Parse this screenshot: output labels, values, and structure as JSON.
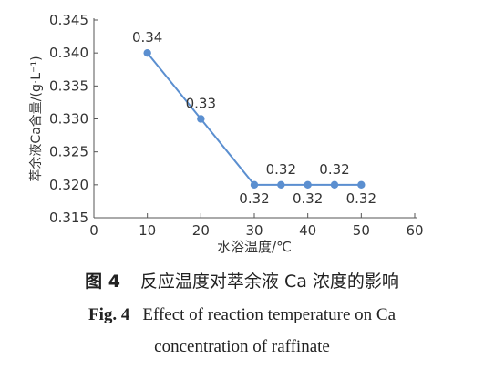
{
  "chart_data": {
    "type": "line",
    "x": [
      10,
      20,
      30,
      35,
      40,
      45,
      50
    ],
    "y": [
      0.34,
      0.33,
      0.32,
      0.32,
      0.32,
      0.32,
      0.32
    ],
    "point_labels": [
      "0.34",
      "0.33",
      "0.32",
      "0.32",
      "0.32",
      "0.32",
      "0.32"
    ],
    "label_positions": [
      "above",
      "above",
      "below",
      "above",
      "below",
      "above",
      "below"
    ],
    "xlim": [
      0,
      60
    ],
    "ylim": [
      0.315,
      0.345
    ],
    "xticks": [
      "0",
      "10",
      "20",
      "30",
      "40",
      "50",
      "60"
    ],
    "yticks": [
      "0.315",
      "0.320",
      "0.325",
      "0.330",
      "0.335",
      "0.340",
      "0.345"
    ],
    "xlabel": "水浴温度/℃",
    "ylabel": "萃余液Ca含量/(g·L⁻¹)",
    "grid": false,
    "line_color": "#5b8fd0",
    "marker_color": "#5b8fd0"
  },
  "caption": {
    "cn_label": "图 4",
    "cn_text": "反应温度对萃余液 Ca 浓度的影响",
    "en_label": "Fig. 4",
    "en_line1": "Effect of reaction temperature on Ca",
    "en_line2": "concentration of raffinate"
  }
}
